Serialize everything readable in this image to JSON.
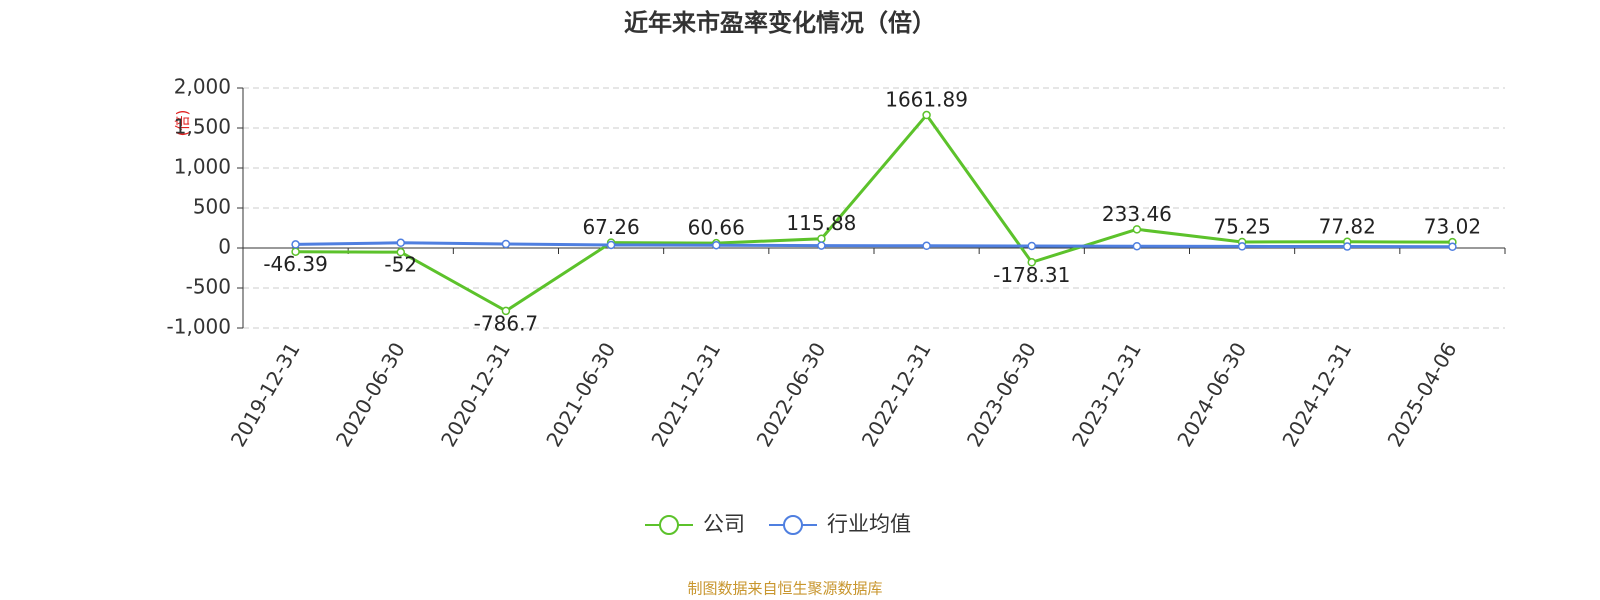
{
  "chart_data": {
    "type": "line",
    "title": "近年来市盈率变化情况（倍）",
    "y_label": "(倍)",
    "source": "制图数据来自恒生聚源数据库",
    "categories": [
      "2019-12-31",
      "2020-06-30",
      "2020-12-31",
      "2021-06-30",
      "2021-12-31",
      "2022-06-30",
      "2022-12-31",
      "2023-06-30",
      "2023-12-31",
      "2024-06-30",
      "2024-12-31",
      "2025-04-06"
    ],
    "series": [
      {
        "name": "公司",
        "color": "#5cc22b",
        "values": [
          -46.39,
          -52,
          -786.7,
          67.26,
          60.66,
          115.88,
          1661.89,
          -178.31,
          233.46,
          75.25,
          77.82,
          73.02
        ],
        "show_labels": true
      },
      {
        "name": "行业均值",
        "color": "#4f7fe0",
        "values": [
          45,
          65,
          50,
          38,
          35,
          30,
          28,
          25,
          22,
          20,
          18,
          15
        ],
        "show_labels": false
      }
    ],
    "ylim": [
      -1000,
      2000
    ],
    "yticks": [
      {
        "value": -1000,
        "label": "-1,000"
      },
      -500,
      0,
      500,
      {
        "value": 1000,
        "label": "1,000"
      },
      {
        "value": 1500,
        "label": "1,500"
      },
      {
        "value": 2000,
        "label": "2,000"
      }
    ],
    "grid": true
  }
}
